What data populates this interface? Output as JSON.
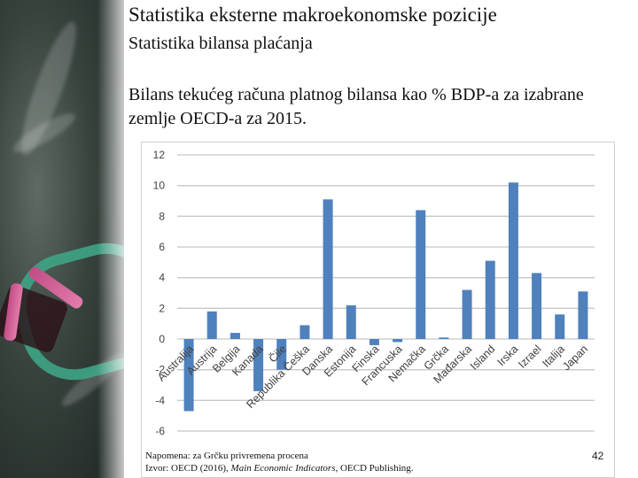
{
  "slide": {
    "title": "Statistika eksterne makroekonomske pozicije",
    "subtitle": "Statistika bilansa plaćanja",
    "chart_heading": "Bilans tekućeg računa platnog bilansa kao % BDP-a za izabrane zemlje OECD-a za 2015.",
    "note_line1": "Napomena: za Grčku privremena procena",
    "source_prefix": "Izvor: OECD (2016), ",
    "source_title": "Main Economic Indicators",
    "source_suffix": ", OECD Publishing.",
    "page_number": "42"
  },
  "colors": {
    "bar": "#4f81bd",
    "grid": "#c8c8c8",
    "axis_text": "#404040"
  },
  "chart_data": {
    "type": "bar",
    "title": "",
    "xlabel": "",
    "ylabel": "",
    "ylim": [
      -6,
      12
    ],
    "yticks": [
      -6,
      -4,
      -2,
      0,
      2,
      4,
      6,
      8,
      10,
      12
    ],
    "grid": true,
    "categories": [
      "Australija",
      "Austrija",
      "Belgija",
      "Kanada",
      "Čile",
      "Republika Češka",
      "Danska",
      "Estonija",
      "Finska",
      "Francuska",
      "Nemačka",
      "Grčka",
      "Mađarska",
      "Island",
      "Irska",
      "Izrael",
      "Italija",
      "Japan"
    ],
    "values": [
      -4.7,
      1.8,
      0.4,
      -3.4,
      -2.0,
      0.9,
      9.1,
      2.2,
      -0.4,
      -0.2,
      8.4,
      0.1,
      3.2,
      5.1,
      10.2,
      4.3,
      1.6,
      3.1
    ]
  }
}
